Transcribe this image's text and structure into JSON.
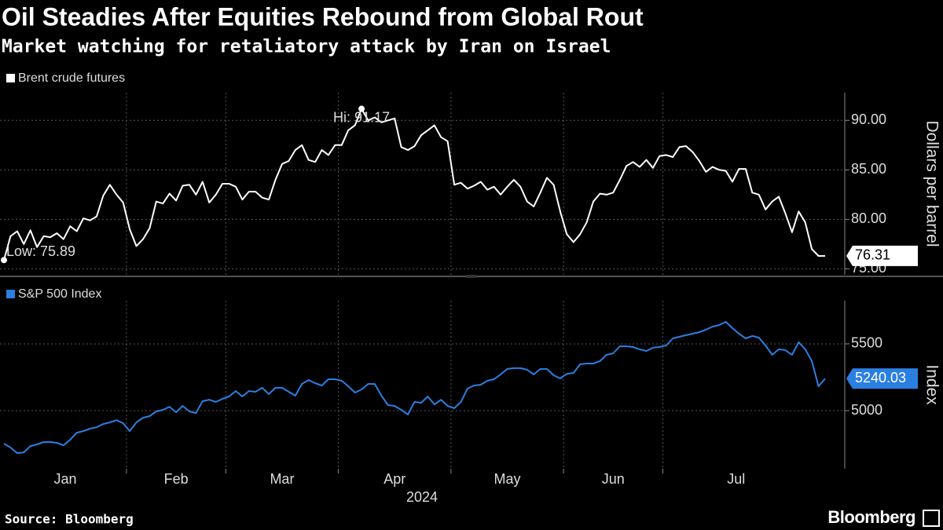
{
  "header": {
    "title": "Oil Steadies After Equities Rebound from Global Rout",
    "subtitle": "Market watching for retaliatory attack by Iran on Israel"
  },
  "footer": {
    "source": "Source: Bloomberg",
    "logo": "Bloomberg"
  },
  "chart_data": [
    {
      "type": "line",
      "y_label": "Dollars per barrel",
      "series": [
        {
          "name": "Brent crude futures",
          "color": "#ffffff",
          "values": [
            75.89,
            78.3,
            78.8,
            77.5,
            78.9,
            77.2,
            78.3,
            78.2,
            78.6,
            78.0,
            79.3,
            78.8,
            80.1,
            79.9,
            80.3,
            82.4,
            83.5,
            82.5,
            81.7,
            79.0,
            77.3,
            78.0,
            79.1,
            81.8,
            81.6,
            82.6,
            81.9,
            83.4,
            83.5,
            82.5,
            83.8,
            81.7,
            82.5,
            83.6,
            83.6,
            83.3,
            82.0,
            82.8,
            82.8,
            82.2,
            82.0,
            84.0,
            85.6,
            85.9,
            87.0,
            87.5,
            86.0,
            85.8,
            87.0,
            86.5,
            87.5,
            87.5,
            89.0,
            89.5,
            91.17,
            90.0,
            90.3,
            89.8,
            90.0,
            90.2,
            87.3,
            87.0,
            87.4,
            88.5,
            89.0,
            89.5,
            88.3,
            87.9,
            83.5,
            83.7,
            83.1,
            83.4,
            83.8,
            83.0,
            83.3,
            82.5,
            83.3,
            84.0,
            83.3,
            81.8,
            81.3,
            82.7,
            84.2,
            83.5,
            80.8,
            78.5,
            77.7,
            78.5,
            79.7,
            81.8,
            82.6,
            82.5,
            82.7,
            84.0,
            85.4,
            85.8,
            85.3,
            86.0,
            85.2,
            86.4,
            86.5,
            86.3,
            87.3,
            87.4,
            86.8,
            85.9,
            84.8,
            85.3,
            85.0,
            84.9,
            83.8,
            85.1,
            85.1,
            82.7,
            82.5,
            81.0,
            81.8,
            82.3,
            80.6,
            78.7,
            80.8,
            79.7,
            77.0,
            76.3,
            76.31
          ]
        }
      ],
      "annotations": {
        "high": "Hi: 91.17",
        "low": "Low: 75.89"
      },
      "ylim": [
        74.4,
        92.8
      ],
      "yticks": [
        {
          "value": 75,
          "label": "75.00"
        },
        {
          "value": 80,
          "label": "80.00"
        },
        {
          "value": 85,
          "label": "85.00"
        },
        {
          "value": 90,
          "label": "90.00"
        }
      ],
      "grid": true
    },
    {
      "type": "line",
      "y_label": "Index",
      "x_label": "2024",
      "categories": [
        "Jan",
        null,
        null,
        null,
        null,
        null,
        null,
        null,
        null,
        null,
        null,
        null,
        null,
        null,
        null,
        null,
        null,
        null,
        null,
        "Feb",
        null,
        null,
        null,
        null,
        null,
        null,
        null,
        null,
        null,
        null,
        null,
        null,
        null,
        null,
        "Mar",
        null,
        null,
        null,
        null,
        null,
        null,
        null,
        null,
        null,
        null,
        null,
        null,
        null,
        null,
        null,
        null,
        "Apr",
        null,
        null,
        null,
        null,
        null,
        null,
        null,
        null,
        null,
        null,
        null,
        null,
        null,
        null,
        null,
        null,
        "May",
        null,
        null,
        null,
        null,
        null,
        null,
        null,
        null,
        null,
        null,
        null,
        null,
        null,
        null,
        null,
        null,
        "Jun",
        null,
        null,
        null,
        null,
        null,
        null,
        null,
        null,
        null,
        null,
        null,
        null,
        null,
        null,
        "Jul",
        null,
        null,
        null,
        null,
        null,
        null,
        null,
        null,
        null,
        null,
        null,
        null,
        null,
        null,
        null,
        null,
        null,
        null,
        null,
        null,
        null,
        null,
        null,
        null
      ],
      "series": [
        {
          "name": "S&P 500 Index",
          "color": "#2b7fe0",
          "values": [
            4753,
            4724,
            4682,
            4688,
            4735,
            4747,
            4765,
            4765,
            4759,
            4741,
            4782,
            4835,
            4847,
            4865,
            4876,
            4900,
            4912,
            4929,
            4906,
            4847,
            4912,
            4947,
            4959,
            4994,
            5006,
            5029,
            4988,
            5035,
            4994,
            4982,
            5071,
            5082,
            5065,
            5088,
            5106,
            5147,
            5106,
            5147,
            5141,
            5171,
            5124,
            5171,
            5171,
            5141,
            5112,
            5200,
            5229,
            5206,
            5188,
            5235,
            5235,
            5224,
            5182,
            5135,
            5159,
            5200,
            5200,
            5112,
            5041,
            5035,
            5006,
            4971,
            5065,
            5059,
            5106,
            5047,
            5082,
            5035,
            5018,
            5065,
            5165,
            5188,
            5194,
            5224,
            5235,
            5271,
            5312,
            5318,
            5318,
            5306,
            5271,
            5312,
            5312,
            5265,
            5241,
            5276,
            5282,
            5347,
            5353,
            5353,
            5371,
            5418,
            5429,
            5482,
            5482,
            5476,
            5459,
            5447,
            5471,
            5476,
            5488,
            5541,
            5553,
            5565,
            5576,
            5588,
            5606,
            5629,
            5641,
            5665,
            5618,
            5576,
            5541,
            5559,
            5547,
            5488,
            5418,
            5459,
            5453,
            5418,
            5512,
            5459,
            5371,
            5182,
            5240.03
          ]
        }
      ],
      "ylim": [
        4565,
        5823
      ],
      "yticks": [
        5000,
        5500
      ],
      "grid": true
    }
  ]
}
